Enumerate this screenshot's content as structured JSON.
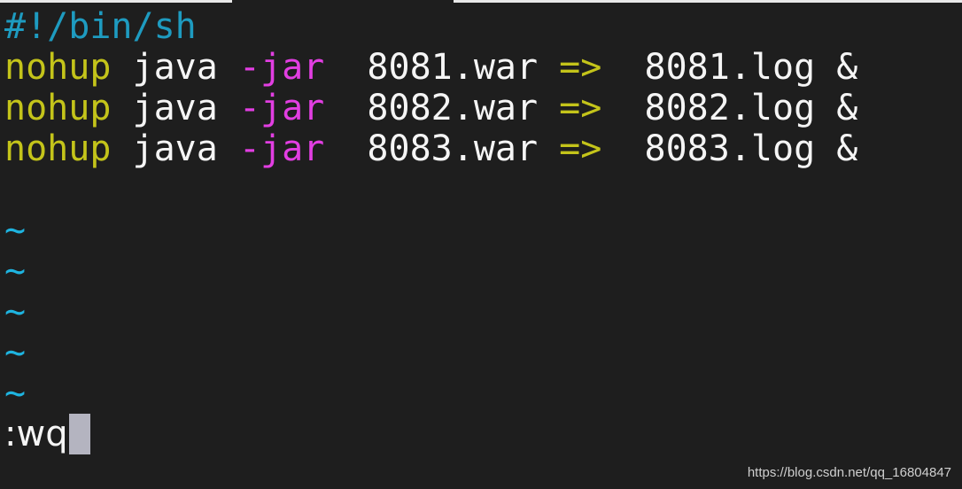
{
  "editor": {
    "shebang": "#!/bin/sh",
    "lines": [
      {
        "cmd": "nohup",
        "prog": " java ",
        "flag": "-jar",
        "file": "  8081.war ",
        "arrow": "=>",
        "out": "  8081.log &"
      },
      {
        "cmd": "nohup",
        "prog": " java ",
        "flag": "-jar",
        "file": "  8082.war ",
        "arrow": "=>",
        "out": "  8082.log &"
      },
      {
        "cmd": "nohup",
        "prog": " java ",
        "flag": "-jar",
        "file": "  8083.war ",
        "arrow": "=>",
        "out": "  8083.log &"
      }
    ],
    "empty_marker": "~",
    "command": ":wq"
  },
  "colors": {
    "background": "#1e1e1e",
    "shebang": "#1e9bc0",
    "keyword": "#c4c41a",
    "flag": "#e23ee2",
    "tilde": "#1eb4e0",
    "cursor": "#b4b4c0"
  },
  "watermark": "https://blog.csdn.net/qq_16804847"
}
